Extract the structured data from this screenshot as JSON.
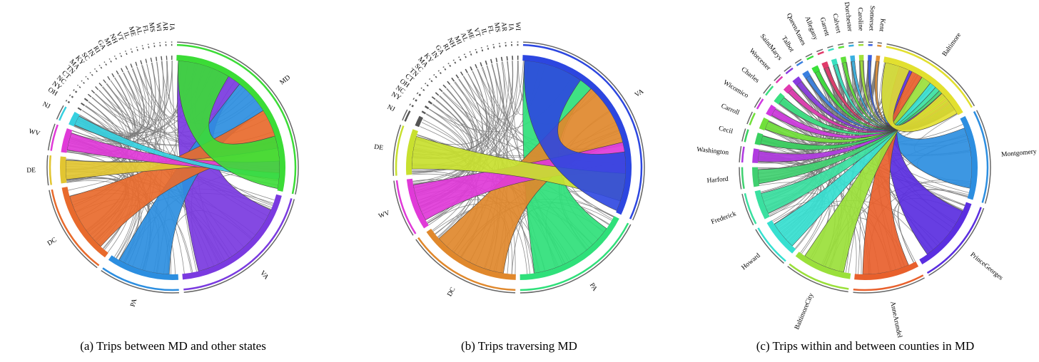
{
  "chart_data": [
    {
      "type": "chord",
      "caption": "(a) Trips between MD and other states",
      "groups": [
        {
          "name": "MD",
          "value": 400,
          "color": "#3bdc36"
        },
        {
          "name": "VA",
          "value": 280,
          "color": "#7a3ae0"
        },
        {
          "name": "PA",
          "value": 150,
          "color": "#2c8ee0"
        },
        {
          "name": "DC",
          "value": 170,
          "color": "#e86a2c"
        },
        {
          "name": "DE",
          "value": 55,
          "color": "#e2c531"
        },
        {
          "name": "WV",
          "value": 50,
          "color": "#e03ad8"
        },
        {
          "name": "NJ",
          "value": 28,
          "color": "#36d0e0"
        },
        {
          "name": "OH",
          "value": 3
        },
        {
          "name": "NY",
          "value": 3
        },
        {
          "name": "NC",
          "value": 3
        },
        {
          "name": "CT",
          "value": 2
        },
        {
          "name": "TN",
          "value": 2
        },
        {
          "name": "MA",
          "value": 2
        },
        {
          "name": "KY",
          "value": 2
        },
        {
          "name": "SC",
          "value": 2
        },
        {
          "name": "IN",
          "value": 2
        },
        {
          "name": "RI",
          "value": 2
        },
        {
          "name": "GA",
          "value": 2
        },
        {
          "name": "MI",
          "value": 2
        },
        {
          "name": "NH",
          "value": 2
        },
        {
          "name": "VT",
          "value": 2
        },
        {
          "name": "IL",
          "value": 2
        },
        {
          "name": "ME",
          "value": 2
        },
        {
          "name": "AL",
          "value": 2
        },
        {
          "name": "FL",
          "value": 2
        },
        {
          "name": "MS",
          "value": 2
        },
        {
          "name": "WI",
          "value": 2
        },
        {
          "name": "AR",
          "value": 2
        },
        {
          "name": "IA",
          "value": 2
        }
      ]
    },
    {
      "type": "chord",
      "caption": "(b) Trips traversing MD",
      "groups": [
        {
          "name": "VA",
          "value": 380,
          "color": "#2c46e0"
        },
        {
          "name": "PA",
          "value": 210,
          "color": "#2fe07a"
        },
        {
          "name": "DC",
          "value": 180,
          "color": "#e0882c"
        },
        {
          "name": "WV",
          "value": 90,
          "color": "#e03ad8"
        },
        {
          "name": "DE",
          "value": 80,
          "color": "#c8e02f"
        },
        {
          "name": "NJ",
          "value": 18
        },
        {
          "name": "NY",
          "value": 3
        },
        {
          "name": "NC",
          "value": 3
        },
        {
          "name": "OH",
          "value": 3
        },
        {
          "name": "CT",
          "value": 2
        },
        {
          "name": "TN",
          "value": 2
        },
        {
          "name": "SC",
          "value": 2
        },
        {
          "name": "MA",
          "value": 2
        },
        {
          "name": "KY",
          "value": 2
        },
        {
          "name": "IN",
          "value": 2
        },
        {
          "name": "GA",
          "value": 2
        },
        {
          "name": "RI",
          "value": 2
        },
        {
          "name": "NH",
          "value": 2
        },
        {
          "name": "MI",
          "value": 2
        },
        {
          "name": "AL",
          "value": 2
        },
        {
          "name": "ME",
          "value": 2
        },
        {
          "name": "VT",
          "value": 2
        },
        {
          "name": "IL",
          "value": 2
        },
        {
          "name": "FL",
          "value": 2
        },
        {
          "name": "MS",
          "value": 2
        },
        {
          "name": "AR",
          "value": 2
        },
        {
          "name": "IA",
          "value": 2
        },
        {
          "name": "WI",
          "value": 2
        }
      ]
    },
    {
      "type": "chord",
      "caption": "(c) Trips within and between counties in MD",
      "groups": [
        {
          "name": "Baltimore",
          "value": 150,
          "color": "#e2e02f"
        },
        {
          "name": "Montgomery",
          "value": 130,
          "color": "#2c8ee0"
        },
        {
          "name": "PrinceGeorges",
          "value": 120,
          "color": "#5a2ee0"
        },
        {
          "name": "AnneArundel",
          "value": 100,
          "color": "#e8602c"
        },
        {
          "name": "BaltimoreCity",
          "value": 90,
          "color": "#9ae03a"
        },
        {
          "name": "Howard",
          "value": 60,
          "color": "#36e0d0"
        },
        {
          "name": "Frederick",
          "value": 45,
          "color": "#3ae0a0"
        },
        {
          "name": "Harford",
          "value": 30,
          "color": "#40d070"
        },
        {
          "name": "Washington",
          "value": 22,
          "color": "#b03ae0"
        },
        {
          "name": "Cecil",
          "value": 18,
          "color": "#3ad060"
        },
        {
          "name": "Carroll",
          "value": 18,
          "color": "#70e03a"
        },
        {
          "name": "Wicomico",
          "value": 16,
          "color": "#d03ae0"
        },
        {
          "name": "Charles",
          "value": 16,
          "color": "#3ae080"
        },
        {
          "name": "Worcester",
          "value": 12,
          "color": "#e03ab0"
        },
        {
          "name": "SaintMarys",
          "value": 12,
          "color": "#8a3ae0"
        },
        {
          "name": "Talbot",
          "value": 10,
          "color": "#3a80e0"
        },
        {
          "name": "QueenAnnes",
          "value": 10,
          "color": "#3ae03a"
        },
        {
          "name": "Allegany",
          "value": 9,
          "color": "#e03a6a"
        },
        {
          "name": "Garrett",
          "value": 8,
          "color": "#3ae0c0"
        },
        {
          "name": "Calvert",
          "value": 8,
          "color": "#60e03a"
        },
        {
          "name": "Dorchester",
          "value": 7,
          "color": "#3ab0e0"
        },
        {
          "name": "Caroline",
          "value": 7,
          "color": "#a0e03a"
        },
        {
          "name": "Somerset",
          "value": 6,
          "color": "#3a60e0"
        },
        {
          "name": "Kent",
          "value": 6,
          "color": "#e0903a"
        }
      ]
    }
  ]
}
